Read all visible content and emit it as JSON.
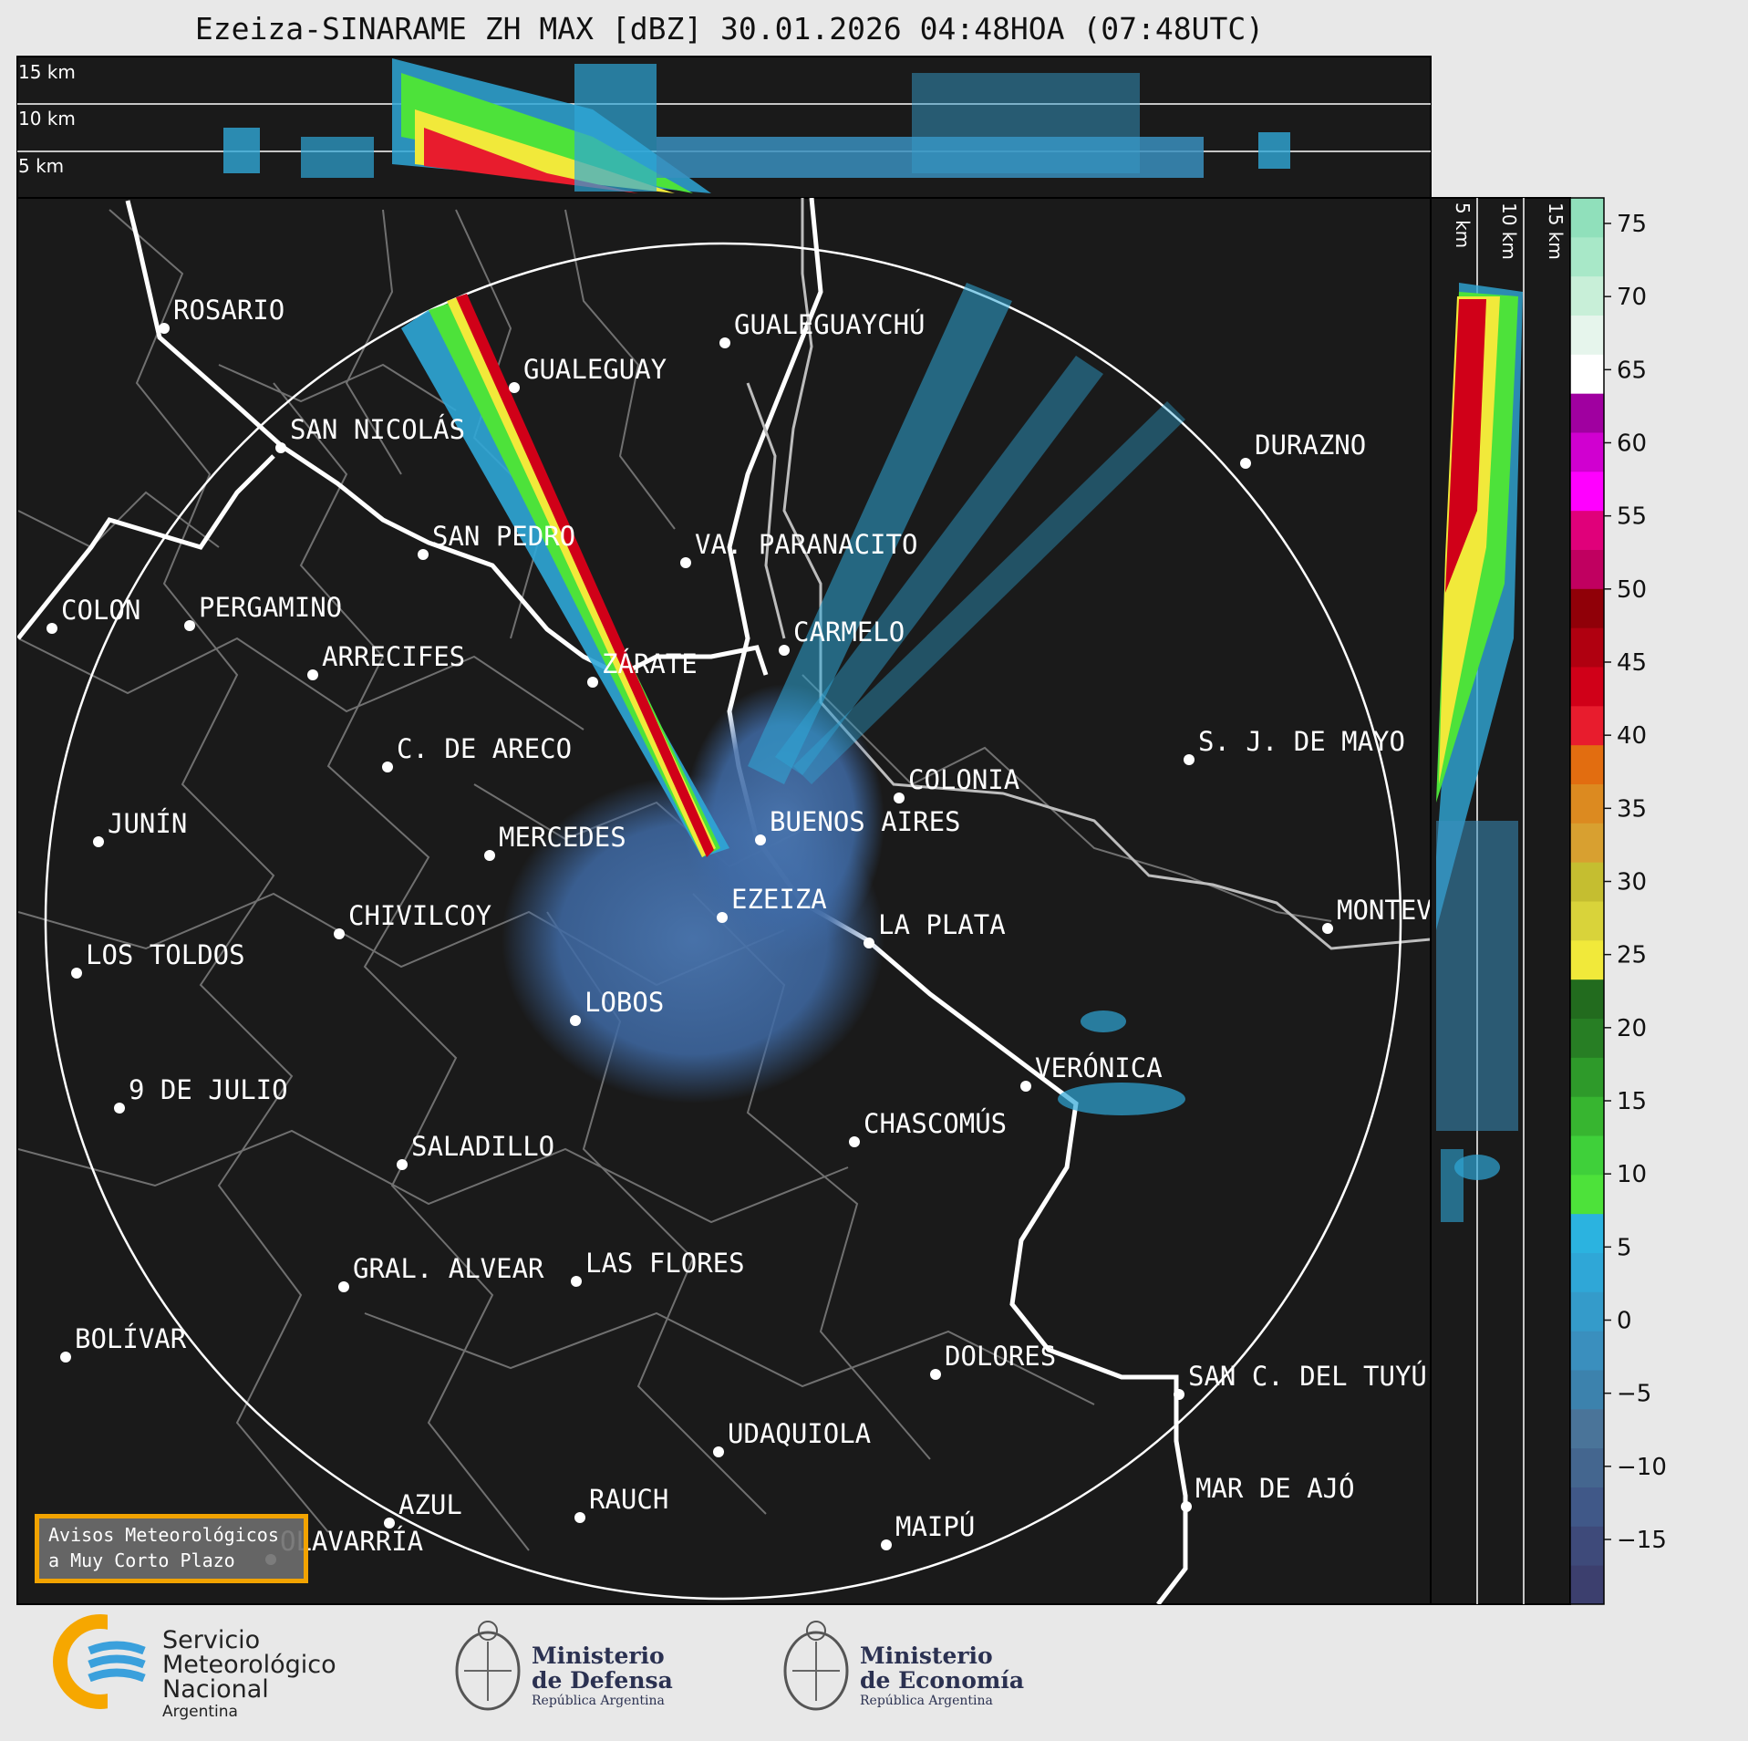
{
  "title": "Ezeiza-SINARAME ZH MAX [dBZ] 30.01.2026 04:48HOA (07:48UTC)",
  "height_labels": [
    "15 km",
    "10 km",
    "5 km"
  ],
  "colorbar": {
    "ticks": [
      "75",
      "70",
      "65",
      "60",
      "55",
      "50",
      "45",
      "40",
      "35",
      "30",
      "25",
      "20",
      "15",
      "10",
      "5",
      "0",
      "−5",
      "−10",
      "−15"
    ],
    "colors": [
      "#3c3f6e",
      "#3e4a7a",
      "#405888",
      "#44668f",
      "#4a7499",
      "#3c82ad",
      "#3a8fbe",
      "#349bca",
      "#2fa7d7",
      "#2bb3e0",
      "#4de23a",
      "#3fd03a",
      "#37b530",
      "#2e9a2a",
      "#277e24",
      "#226b1e",
      "#f1e93a",
      "#d9d33a",
      "#c5be30",
      "#d8a030",
      "#dc8a20",
      "#e26d10",
      "#e81c2d",
      "#d00018",
      "#b00010",
      "#900008",
      "#c00060",
      "#e0007a",
      "#ff00ff",
      "#d000d0",
      "#a000a0",
      "#ffffff",
      "#e6f5ec",
      "#c8efd8",
      "#a8e8c8",
      "#90e0bb"
    ]
  },
  "cities": [
    {
      "name": "ROSARIO"
    },
    {
      "name": "GUALEGUAYCHÚ"
    },
    {
      "name": "GUALEGUAY"
    },
    {
      "name": "SAN NICOLÁS"
    },
    {
      "name": "DURAZNO"
    },
    {
      "name": "SAN PEDRO"
    },
    {
      "name": "VA. PARANACITO"
    },
    {
      "name": "COLON"
    },
    {
      "name": "PERGAMINO"
    },
    {
      "name": "CARMELO"
    },
    {
      "name": "ARRECIFES"
    },
    {
      "name": "ZÁRATE"
    },
    {
      "name": "S. J. DE MAYO"
    },
    {
      "name": "C. DE ARECO"
    },
    {
      "name": "COLONIA"
    },
    {
      "name": "JUNÍN"
    },
    {
      "name": "BUENOS AIRES"
    },
    {
      "name": "MERCEDES"
    },
    {
      "name": "MONTEV"
    },
    {
      "name": "EZEIZA"
    },
    {
      "name": "CHIVILCOY"
    },
    {
      "name": "LA PLATA"
    },
    {
      "name": "LOS TOLDOS"
    },
    {
      "name": "LOBOS"
    },
    {
      "name": "VERÓNICA"
    },
    {
      "name": "9 DE JULIO"
    },
    {
      "name": "CHASCOMÚS"
    },
    {
      "name": "SALADILLO"
    },
    {
      "name": "GRAL. ALVEAR"
    },
    {
      "name": "LAS FLORES"
    },
    {
      "name": "BOLÍVAR"
    },
    {
      "name": "DOLORES"
    },
    {
      "name": "SAN C. DEL TUYÚ"
    },
    {
      "name": "UDAQUIOLA"
    },
    {
      "name": "MAR DE AJÓ"
    },
    {
      "name": "AZUL"
    },
    {
      "name": "RAUCH"
    },
    {
      "name": "MAIPÚ"
    },
    {
      "name": "OLAVARRÍA"
    }
  ],
  "alert": {
    "line1": "Avisos Meteorológicos",
    "line2": "a Muy Corto Plazo"
  },
  "logos": {
    "smn": [
      "Servicio",
      "Meteorológico",
      "Nacional",
      "Argentina"
    ],
    "defensa": [
      "Ministerio",
      "de Defensa",
      "República Argentina"
    ],
    "economia": [
      "Ministerio",
      "de Economía",
      "República Argentina"
    ]
  }
}
